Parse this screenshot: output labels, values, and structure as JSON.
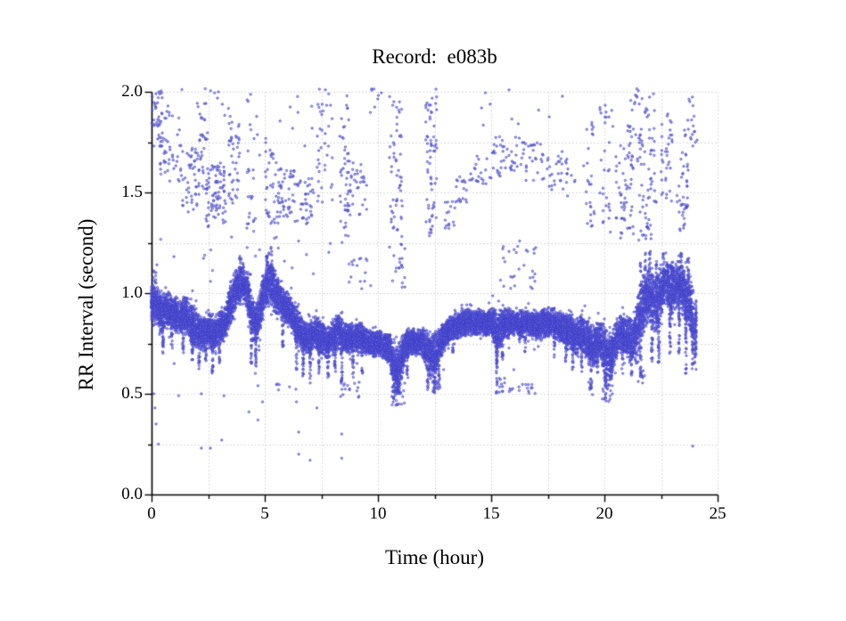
{
  "chart_data": {
    "type": "scatter",
    "title": "Record:  e083b",
    "xlabel": "Time (hour)",
    "ylabel": "RR Interval (second)",
    "xlim": [
      0,
      25
    ],
    "ylim": [
      0.0,
      2.0
    ],
    "x_major_values": [
      0,
      5,
      10,
      15,
      20,
      25
    ],
    "x_major_labels": [
      "0",
      "5",
      "10",
      "15",
      "20",
      "25"
    ],
    "x_minor_values": [
      2.5,
      7.5,
      12.5,
      17.5,
      22.5
    ],
    "y_major_values": [
      0.0,
      0.5,
      1.0,
      1.5,
      2.0
    ],
    "y_major_labels": [
      "0.0",
      "0.5",
      "1.0",
      "1.5",
      "2.0"
    ],
    "y_minor_values": [
      0.25,
      0.75,
      1.25,
      1.75
    ],
    "grid": {
      "style": "dotted",
      "color": "#b4b4b4",
      "x_step": 2.5,
      "y_step": 0.25
    },
    "axis_color": "#000000",
    "point_color": "#3a3ac8",
    "point_fill": "rgba(150,150,235,0.5)",
    "seed": 42,
    "main_band": {
      "t_start": 0,
      "t_step": 0.25,
      "t_end": 24.05,
      "points_per_step": 150,
      "center": [
        0.95,
        0.93,
        0.9,
        0.92,
        0.9,
        0.88,
        0.9,
        0.85,
        0.82,
        0.8,
        0.82,
        0.8,
        0.83,
        0.85,
        0.95,
        1.02,
        1.05,
        1.0,
        0.85,
        0.88,
        1.02,
        1.05,
        1.0,
        0.95,
        0.92,
        0.88,
        0.82,
        0.78,
        0.78,
        0.8,
        0.78,
        0.75,
        0.78,
        0.8,
        0.78,
        0.77,
        0.78,
        0.78,
        0.76,
        0.75,
        0.75,
        0.74,
        0.72,
        0.62,
        0.65,
        0.75,
        0.76,
        0.76,
        0.75,
        0.7,
        0.68,
        0.75,
        0.8,
        0.83,
        0.84,
        0.85,
        0.86,
        0.85,
        0.86,
        0.85,
        0.86,
        0.8,
        0.84,
        0.85,
        0.85,
        0.84,
        0.85,
        0.84,
        0.83,
        0.85,
        0.86,
        0.85,
        0.83,
        0.82,
        0.8,
        0.78,
        0.8,
        0.76,
        0.72,
        0.78,
        0.72,
        0.68,
        0.76,
        0.8,
        0.78,
        0.75,
        0.85,
        0.95,
        1.0,
        0.95,
        1.0,
        1.05,
        1.0,
        1.05,
        1.0,
        0.95,
        0.85
      ],
      "spread": [
        0.08,
        0.09,
        0.1,
        0.08,
        0.08,
        0.09,
        0.08,
        0.1,
        0.09,
        0.08,
        0.09,
        0.08,
        0.08,
        0.08,
        0.1,
        0.1,
        0.08,
        0.1,
        0.1,
        0.1,
        0.1,
        0.12,
        0.1,
        0.08,
        0.08,
        0.08,
        0.1,
        0.08,
        0.08,
        0.08,
        0.08,
        0.07,
        0.08,
        0.08,
        0.07,
        0.07,
        0.07,
        0.07,
        0.06,
        0.06,
        0.06,
        0.06,
        0.07,
        0.12,
        0.12,
        0.07,
        0.06,
        0.06,
        0.07,
        0.1,
        0.12,
        0.08,
        0.07,
        0.06,
        0.06,
        0.06,
        0.06,
        0.06,
        0.06,
        0.06,
        0.06,
        0.12,
        0.07,
        0.07,
        0.06,
        0.07,
        0.06,
        0.06,
        0.07,
        0.07,
        0.07,
        0.07,
        0.07,
        0.08,
        0.09,
        0.09,
        0.08,
        0.1,
        0.12,
        0.08,
        0.12,
        0.12,
        0.09,
        0.09,
        0.1,
        0.12,
        0.15,
        0.15,
        0.12,
        0.15,
        0.12,
        0.1,
        0.12,
        0.1,
        0.12,
        0.15,
        0.12
      ]
    },
    "clusters": [
      [
        0.0,
        0.5,
        1.72,
        2.02,
        40
      ],
      [
        0.05,
        0.2,
        0.95,
        1.12,
        25
      ],
      [
        0.3,
        1.3,
        1.55,
        1.95,
        45
      ],
      [
        1.3,
        2.1,
        1.4,
        1.72,
        50
      ],
      [
        2.1,
        2.5,
        1.5,
        1.9,
        28
      ],
      [
        2.4,
        3.3,
        1.33,
        1.65,
        80
      ],
      [
        3.4,
        3.9,
        1.42,
        1.85,
        40
      ],
      [
        0.9,
        3.5,
        1.88,
        2.02,
        12
      ],
      [
        4.2,
        4.6,
        1.3,
        2.0,
        25
      ],
      [
        5.0,
        5.6,
        1.33,
        1.75,
        35
      ],
      [
        5.6,
        6.3,
        1.38,
        1.62,
        45
      ],
      [
        6.3,
        7.2,
        1.33,
        1.57,
        40
      ],
      [
        7.3,
        8.0,
        1.45,
        2.02,
        35
      ],
      [
        8.3,
        8.7,
        1.25,
        2.0,
        30
      ],
      [
        8.5,
        9.5,
        1.38,
        1.66,
        45
      ],
      [
        9.6,
        10.2,
        1.88,
        2.02,
        8
      ],
      [
        10.5,
        11.05,
        1.45,
        1.98,
        40
      ],
      [
        10.55,
        11.1,
        1.28,
        1.45,
        15
      ],
      [
        12.1,
        12.6,
        1.25,
        2.02,
        65
      ],
      [
        12.9,
        13.4,
        1.28,
        1.46,
        15
      ],
      [
        13.4,
        14.0,
        1.44,
        1.58,
        18
      ],
      [
        14.0,
        15.0,
        1.54,
        1.68,
        22
      ],
      [
        15.0,
        16.3,
        1.58,
        1.78,
        40
      ],
      [
        16.3,
        17.3,
        1.53,
        1.75,
        30
      ],
      [
        17.3,
        18.4,
        1.48,
        1.68,
        25
      ],
      [
        15.4,
        17.0,
        1.02,
        1.26,
        30
      ],
      [
        19.2,
        19.6,
        1.3,
        1.85,
        25
      ],
      [
        19.8,
        20.4,
        1.3,
        1.95,
        30
      ],
      [
        20.5,
        21.3,
        1.27,
        1.75,
        55
      ],
      [
        21.0,
        21.6,
        1.6,
        2.02,
        25
      ],
      [
        21.5,
        22.3,
        1.25,
        2.0,
        70
      ],
      [
        22.5,
        23.0,
        1.45,
        1.95,
        35
      ],
      [
        23.2,
        23.7,
        1.3,
        1.7,
        40
      ],
      [
        23.5,
        24.1,
        1.7,
        2.02,
        20
      ],
      [
        3.0,
        9.0,
        1.6,
        2.0,
        22
      ],
      [
        13.0,
        19.0,
        1.82,
        2.02,
        10
      ],
      [
        18.0,
        19.2,
        1.5,
        1.72,
        12
      ],
      [
        0.0,
        8.0,
        1.05,
        1.28,
        26
      ],
      [
        8.7,
        9.7,
        1.0,
        1.2,
        16
      ],
      [
        10.5,
        11.2,
        1.0,
        1.25,
        20
      ],
      [
        8.3,
        9.2,
        0.48,
        0.56,
        14
      ],
      [
        10.6,
        11.2,
        0.44,
        0.56,
        30
      ],
      [
        12.4,
        12.8,
        0.5,
        0.56,
        12
      ],
      [
        15.3,
        15.6,
        0.5,
        0.58,
        10
      ],
      [
        15.7,
        17.1,
        0.5,
        0.55,
        16
      ],
      [
        19.3,
        19.5,
        0.52,
        0.58,
        6
      ],
      [
        19.9,
        20.4,
        0.46,
        0.58,
        18
      ],
      [
        21.4,
        21.8,
        0.55,
        0.62,
        8
      ],
      [
        4.9,
        6.6,
        0.5,
        0.56,
        6
      ]
    ],
    "dips": [
      [
        0.5,
        0.85,
        0.7
      ],
      [
        0.9,
        0.85,
        0.72
      ],
      [
        1.4,
        0.85,
        0.7
      ],
      [
        1.8,
        0.82,
        0.65
      ],
      [
        2.1,
        0.78,
        0.62
      ],
      [
        2.4,
        0.78,
        0.65
      ],
      [
        2.7,
        0.76,
        0.6
      ],
      [
        3.0,
        0.8,
        0.65
      ],
      [
        4.4,
        0.85,
        0.65
      ],
      [
        4.6,
        0.82,
        0.6
      ],
      [
        5.8,
        0.88,
        0.72
      ],
      [
        6.4,
        0.8,
        0.62
      ],
      [
        6.7,
        0.75,
        0.58
      ],
      [
        7.0,
        0.74,
        0.55
      ],
      [
        7.4,
        0.74,
        0.6
      ],
      [
        7.8,
        0.72,
        0.58
      ],
      [
        8.1,
        0.74,
        0.6
      ],
      [
        8.4,
        0.73,
        0.52
      ],
      [
        8.9,
        0.74,
        0.58
      ],
      [
        9.3,
        0.73,
        0.6
      ],
      [
        10.7,
        0.7,
        0.46
      ],
      [
        10.9,
        0.68,
        0.5
      ],
      [
        11.3,
        0.72,
        0.58
      ],
      [
        12.2,
        0.72,
        0.52
      ],
      [
        12.5,
        0.7,
        0.5
      ],
      [
        12.7,
        0.72,
        0.55
      ],
      [
        13.3,
        0.8,
        0.68
      ],
      [
        15.25,
        0.82,
        0.5
      ],
      [
        15.5,
        0.8,
        0.65
      ],
      [
        16.5,
        0.8,
        0.7
      ],
      [
        17.8,
        0.8,
        0.68
      ],
      [
        18.3,
        0.78,
        0.65
      ],
      [
        18.6,
        0.76,
        0.62
      ],
      [
        19.0,
        0.76,
        0.6
      ],
      [
        19.4,
        0.74,
        0.52
      ],
      [
        19.7,
        0.74,
        0.6
      ],
      [
        20.05,
        0.72,
        0.46
      ],
      [
        20.3,
        0.7,
        0.52
      ],
      [
        20.8,
        0.74,
        0.6
      ],
      [
        21.2,
        0.72,
        0.58
      ],
      [
        21.6,
        0.8,
        0.58
      ],
      [
        22.1,
        0.9,
        0.65
      ],
      [
        22.4,
        0.88,
        0.62
      ],
      [
        22.9,
        0.95,
        0.7
      ],
      [
        23.3,
        0.95,
        0.68
      ],
      [
        23.6,
        0.92,
        0.6
      ],
      [
        23.9,
        0.9,
        0.62
      ],
      [
        24.0,
        0.85,
        0.65
      ]
    ],
    "spikes": [
      [
        3.9,
        1.05,
        1.18
      ],
      [
        4.05,
        1.05,
        1.15
      ],
      [
        5.1,
        1.08,
        1.2
      ],
      [
        5.3,
        1.08,
        1.24
      ],
      [
        21.6,
        0.95,
        1.15
      ],
      [
        21.8,
        1.0,
        1.2
      ],
      [
        22.0,
        1.05,
        1.22
      ],
      [
        22.3,
        1.0,
        1.18
      ],
      [
        22.6,
        1.05,
        1.2
      ],
      [
        23.0,
        1.05,
        1.18
      ],
      [
        23.4,
        1.08,
        1.2
      ],
      [
        23.7,
        1.05,
        1.22
      ]
    ],
    "outliers": [
      [
        0.1,
        0.5
      ],
      [
        0.15,
        0.43
      ],
      [
        0.2,
        0.35
      ],
      [
        0.3,
        0.25
      ],
      [
        1.0,
        0.65
      ],
      [
        1.2,
        0.49
      ],
      [
        2.2,
        0.5
      ],
      [
        2.2,
        0.23
      ],
      [
        2.6,
        0.23
      ],
      [
        3.1,
        0.27
      ],
      [
        3.2,
        0.49
      ],
      [
        4.3,
        0.41
      ],
      [
        4.7,
        0.54
      ],
      [
        4.7,
        0.37
      ],
      [
        4.9,
        0.46
      ],
      [
        6.4,
        0.46
      ],
      [
        6.5,
        0.31
      ],
      [
        6.5,
        0.2
      ],
      [
        7.0,
        0.17
      ],
      [
        7.3,
        0.43
      ],
      [
        8.4,
        0.3
      ],
      [
        8.4,
        0.18
      ],
      [
        12.9,
        0.62
      ],
      [
        16.0,
        0.62
      ],
      [
        23.9,
        0.24
      ]
    ]
  }
}
